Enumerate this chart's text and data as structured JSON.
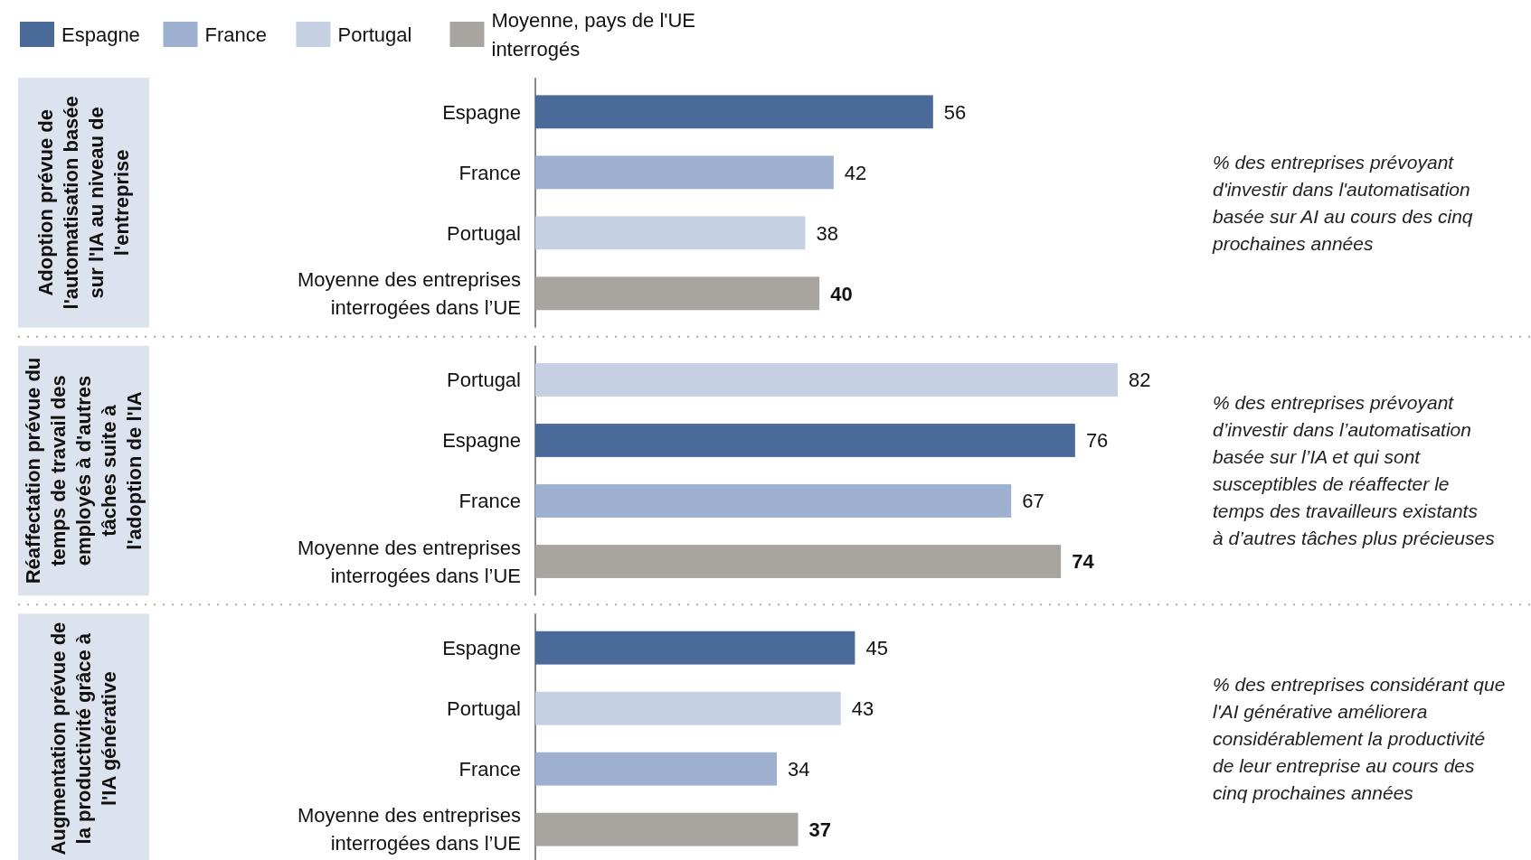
{
  "chart_data": [
    {
      "type": "bar",
      "orientation": "horizontal",
      "stacked": true,
      "data_labels": true,
      "legend": "top left",
      "ylabel": "Adoption prévue de l'automatisation basée sur l'IA au niveau de l'entreprise",
      "categories": [
        "Espagne",
        "France",
        "Portugal",
        "Moyenne des entreprises interrogées dans l’UE"
      ],
      "series": [
        {
          "name": "Espagne",
          "color": "#4a6b9a",
          "values": [
            56,
            null,
            null,
            null
          ]
        },
        {
          "name": "France",
          "color": "#9db0cf",
          "values": [
            null,
            42,
            null,
            null
          ]
        },
        {
          "name": "Portugal",
          "color": "#c5d0e2",
          "values": [
            null,
            null,
            38,
            null
          ]
        },
        {
          "name": "Moyenne, pays de l'UE interrogés",
          "color": "#a8a5a0",
          "values": [
            null,
            null,
            null,
            40
          ]
        }
      ],
      "annotations": [
        "% des entreprises prévoyant d'investir dans l'automatisation basée sur AI au cours des cinq prochaines années"
      ]
    },
    {
      "type": "bar",
      "orientation": "horizontal",
      "stacked": true,
      "data_labels": true,
      "ylabel": "Réaffectation prévue du temps de travail des employés à d'autres tâches suite à l'adoption de l'IA",
      "categories": [
        "Portugal",
        "Espagne",
        "France",
        "Moyenne des entreprises interrogées dans l’UE"
      ],
      "series": [
        {
          "color": "#4a6b9a",
          "values": [
            null,
            76,
            null,
            null
          ]
        },
        {
          "color": "#9db0cf",
          "values": [
            null,
            null,
            67,
            null
          ]
        },
        {
          "color": "#c5d0e2",
          "values": [
            82,
            null,
            null,
            null
          ]
        },
        {
          "color": "#a8a5a0",
          "values": [
            null,
            null,
            null,
            74
          ]
        }
      ],
      "annotations": [
        "% des entreprises prévoyant d’investir dans l’automatisation basée sur l’IA et qui sont susceptibles de réaffecter le temps des travailleurs existants à d’autres tâches plus précieuses"
      ]
    },
    {
      "type": "bar",
      "orientation": "horizontal",
      "stacked": true,
      "data_labels": true,
      "ylabel": "Augmentation prévue de la productivité grâce à l'IA générative",
      "categories": [
        "Espagne",
        "Portugal",
        "France",
        "Moyenne des entreprises interrogées dans l’UE"
      ],
      "series": [
        {
          "color": "#4a6b9a",
          "values": [
            45,
            null,
            null,
            null
          ]
        },
        {
          "color": "#9db0cf",
          "values": [
            null,
            null,
            34,
            null
          ]
        },
        {
          "color": "#c5d0e2",
          "values": [
            null,
            43,
            null,
            null
          ]
        },
        {
          "color": "#a8a5a0",
          "values": [
            null,
            null,
            null,
            37
          ]
        }
      ],
      "annotations": [
        "% des entreprises considérant que l'AI générative améliorera considérablement la productivité de leur entreprise au cours des cinq prochaines années"
      ]
    }
  ]
}
